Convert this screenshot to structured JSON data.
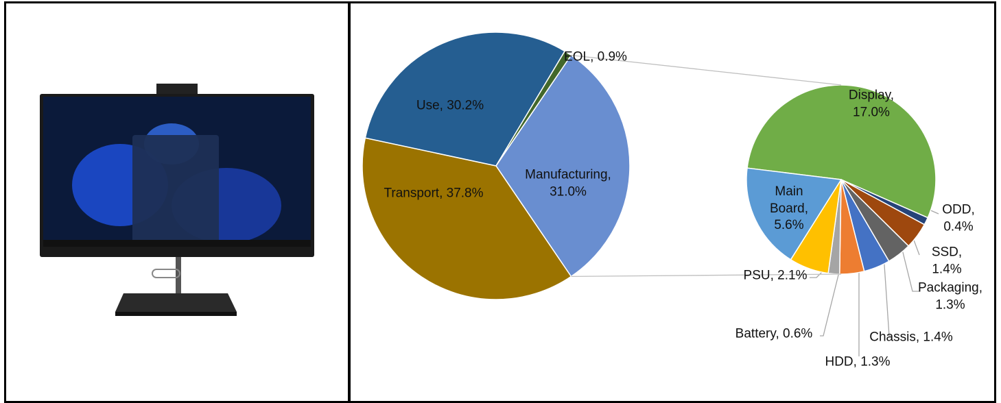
{
  "chart_data": [
    {
      "type": "pie",
      "values": [
        31.0,
        37.8,
        30.2,
        0.9
      ],
      "value_labels": [
        "Manufacturing,\n31.0%",
        "Transport, 37.8%",
        "Use, 30.2%",
        "EOL, 0.9%"
      ],
      "colors": [
        "#698ed0",
        "#9b7300",
        "#255e91",
        "#43682b"
      ]
    },
    {
      "type": "pie",
      "values": [
        17.0,
        0.4,
        1.4,
        1.3,
        1.4,
        1.3,
        0.6,
        2.1,
        5.6
      ],
      "value_labels": [
        "Display,\n17.0%",
        "ODD,\n0.4%",
        "SSD, 1.4%",
        "Packaging,\n1.3%",
        "Chassis, 1.4%",
        "HDD, 1.3%",
        "Battery, 0.6%",
        "PSU, 2.1%",
        "Main\nBoard,\n5.6%"
      ],
      "colors": [
        "#70ad47",
        "#264478",
        "#9e480e",
        "#636363",
        "#4472c4",
        "#ed7d31",
        "#a5a5a5",
        "#ffc000",
        "#5b9bd5"
      ]
    }
  ]
}
